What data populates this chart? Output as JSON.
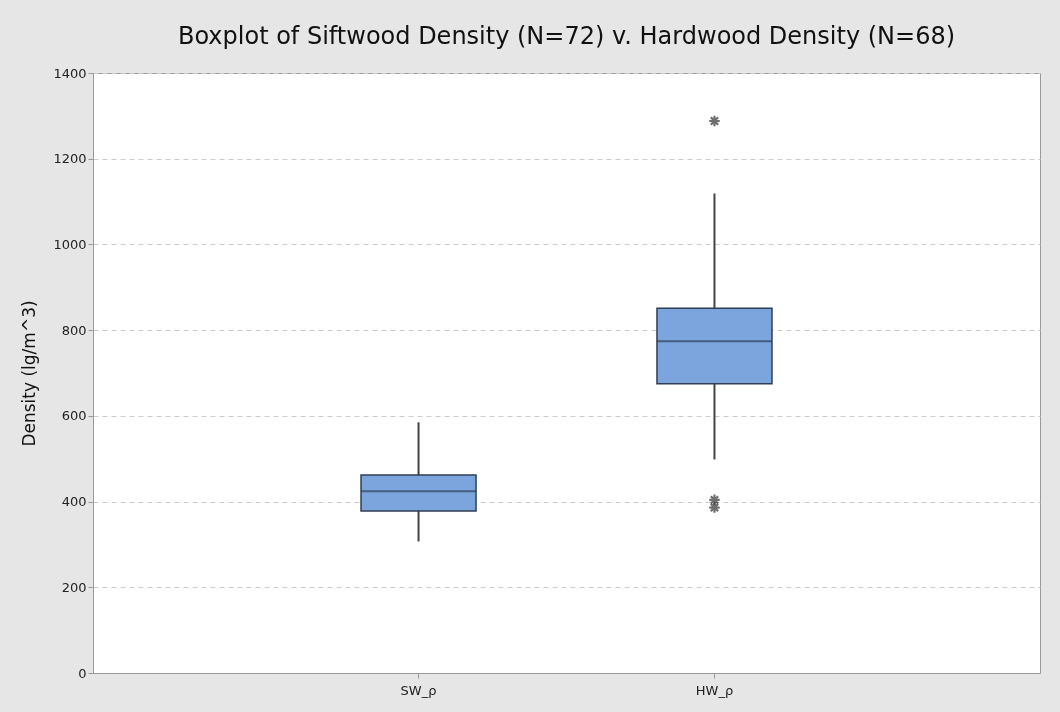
{
  "chart_data": {
    "type": "box",
    "title": "Boxplot of Siftwood Density (N=72) v. Hardwood Density (N=68)",
    "ylabel": "Density (lg/m^3)",
    "categories": [
      "SW_ρ",
      "HW_ρ"
    ],
    "series": [
      {
        "color": "#7ba5dc",
        "boxes": [
          {
            "low": 307,
            "q1": 378,
            "median": 424,
            "q3": 462,
            "high": 585
          },
          {
            "low": 498,
            "q1": 675,
            "median": 774,
            "q3": 851,
            "high": 1119,
            "outliers": [
              1288,
              404,
              386
            ]
          }
        ]
      }
    ],
    "ylim": [
      0,
      1400
    ],
    "yticks": [
      0,
      200,
      400,
      600,
      800,
      1000,
      1200,
      1400
    ],
    "grid": "y"
  }
}
